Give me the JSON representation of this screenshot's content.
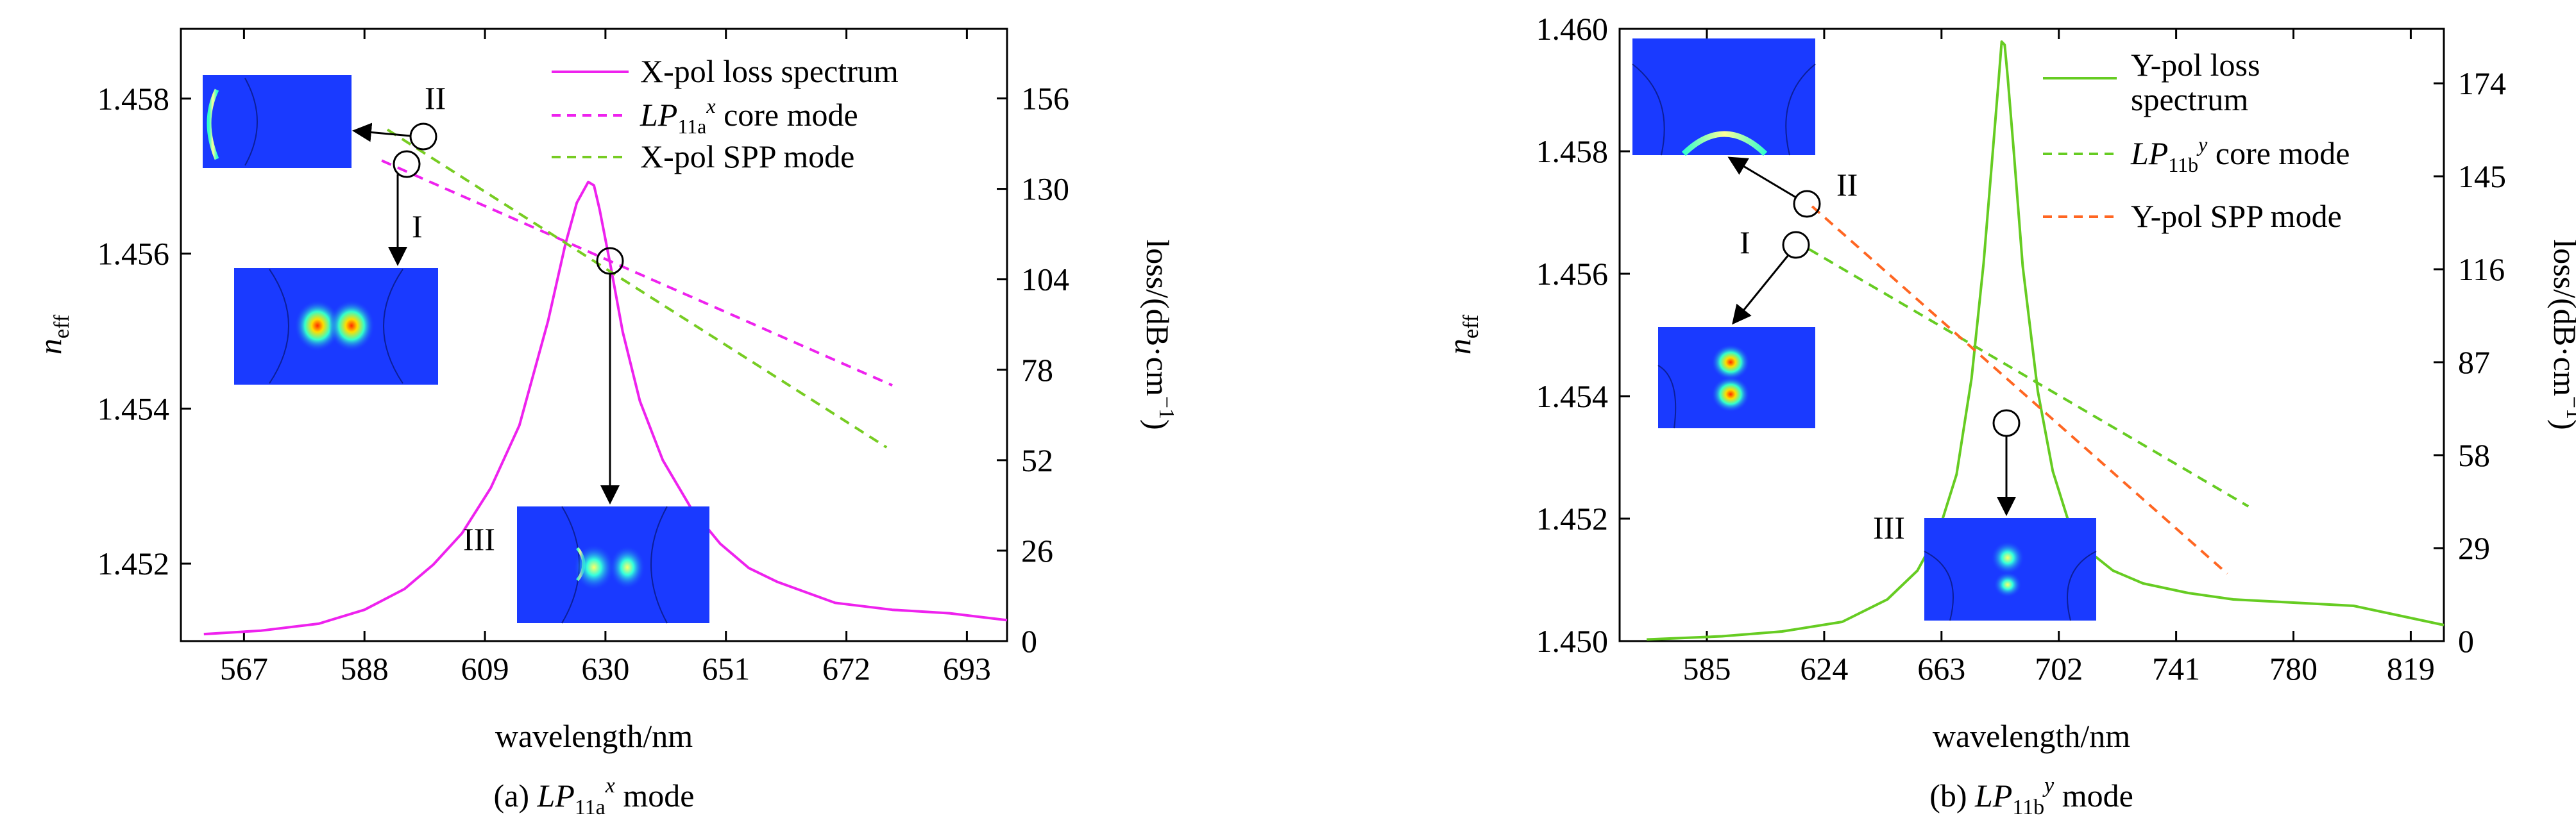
{
  "figure": {
    "panels": [
      {
        "caption_prefix": "(a) ",
        "caption_mode": "LP",
        "caption_sub": "11a",
        "caption_sup": "x",
        "caption_suffix": " mode",
        "xlabel": "wavelength/nm",
        "ylabel_left_main": "n",
        "ylabel_left_sub": "eff",
        "ylabel_right": "loss/(dB·cm",
        "ylabel_right_sup": "−1",
        "ylabel_right_close": ")",
        "legend": [
          {
            "text": "X-pol loss spectrum",
            "color": "#ee22ee",
            "dash": false
          },
          {
            "text_main": "LP",
            "text_sub": "11a",
            "text_sup": "x",
            "text_after": " core mode",
            "color": "#ee22ee",
            "dash": true
          },
          {
            "text": "X-pol SPP mode",
            "color": "#77cc22",
            "dash": true
          }
        ],
        "labels": [
          "I",
          "II",
          "III"
        ]
      },
      {
        "caption_prefix": "(b) ",
        "caption_mode": "LP",
        "caption_sub": "11b",
        "caption_sup": "y",
        "caption_suffix": " mode",
        "xlabel": "wavelength/nm",
        "ylabel_left_main": "n",
        "ylabel_left_sub": "eff",
        "ylabel_right": "loss/(dB·cm",
        "ylabel_right_sup": "−1",
        "ylabel_right_close": ")",
        "legend": [
          {
            "text": "Y-pol loss",
            "text2": "spectrum",
            "color": "#66cc22",
            "dash": false
          },
          {
            "text_main": "LP",
            "text_sub": "11b",
            "text_sup": "y",
            "text_after": " core mode",
            "color": "#66cc22",
            "dash": true
          },
          {
            "text": "Y-pol SPP mode",
            "color": "#ff6622",
            "dash": true
          }
        ],
        "labels": [
          "I",
          "II",
          "III"
        ]
      }
    ]
  },
  "chart_data": [
    {
      "type": "line",
      "x_ticks": [
        567,
        588,
        609,
        630,
        651,
        672,
        693
      ],
      "xlim": [
        556,
        700
      ],
      "yleft_ticks": [
        1.452,
        1.454,
        1.456,
        1.458
      ],
      "yleft_lim": [
        1.451,
        1.4589
      ],
      "yright_ticks": [
        0,
        26,
        52,
        78,
        104,
        130,
        156
      ],
      "yright_lim": [
        0,
        176
      ],
      "series": [
        {
          "axis": "right",
          "color": "#ee22ee",
          "style": "solid",
          "x": [
            560,
            570,
            580,
            588,
            595,
            600,
            605,
            610,
            615,
            620,
            623,
            625,
            627,
            628,
            629,
            631,
            633,
            636,
            640,
            645,
            650,
            655,
            660,
            665,
            670,
            680,
            690,
            700
          ],
          "y": [
            2,
            3,
            5,
            9,
            15,
            22,
            31,
            44,
            62,
            92,
            114,
            126,
            132,
            131,
            124,
            107,
            89,
            69,
            52,
            38,
            28,
            21,
            17,
            14,
            11,
            9,
            8,
            6
          ]
        },
        {
          "axis": "left",
          "color": "#ee22ee",
          "style": "dashed",
          "x": [
            591,
            680
          ],
          "y": [
            1.4572,
            1.4543
          ]
        },
        {
          "axis": "left",
          "color": "#77cc22",
          "style": "dashed",
          "x": [
            592,
            679
          ],
          "y": [
            1.4576,
            1.4535
          ]
        }
      ]
    },
    {
      "type": "line",
      "x_ticks": [
        585,
        624,
        663,
        702,
        741,
        780,
        819
      ],
      "xlim": [
        556,
        830
      ],
      "yleft_ticks": [
        1.45,
        1.452,
        1.454,
        1.456,
        1.458,
        1.46
      ],
      "yleft_lim": [
        1.45,
        1.46
      ],
      "yright_ticks": [
        0,
        29,
        58,
        87,
        116,
        145,
        174
      ],
      "yright_lim": [
        0,
        191
      ],
      "series": [
        {
          "axis": "right",
          "color": "#66cc22",
          "style": "solid",
          "x": [
            565,
            590,
            610,
            630,
            645,
            655,
            662,
            668,
            673,
            677,
            680,
            682,
            683,
            684,
            685,
            687,
            690,
            695,
            700,
            705,
            712,
            720,
            730,
            745,
            760,
            780,
            800,
            815,
            830
          ],
          "y": [
            0.5,
            1.5,
            3,
            6,
            13,
            22,
            34,
            52,
            82,
            118,
            152,
            175,
            187,
            186,
            176,
            153,
            117,
            78,
            53,
            38,
            28,
            22,
            18,
            15,
            13,
            12,
            11,
            8,
            5
          ]
        },
        {
          "axis": "left",
          "color": "#66cc22",
          "style": "dashed",
          "x": [
            619,
            765
          ],
          "y": [
            1.4564,
            1.4522
          ]
        },
        {
          "axis": "left",
          "color": "#ff6622",
          "style": "dashed",
          "x": [
            620,
            758
          ],
          "y": [
            1.4571,
            1.4511
          ]
        }
      ]
    }
  ]
}
